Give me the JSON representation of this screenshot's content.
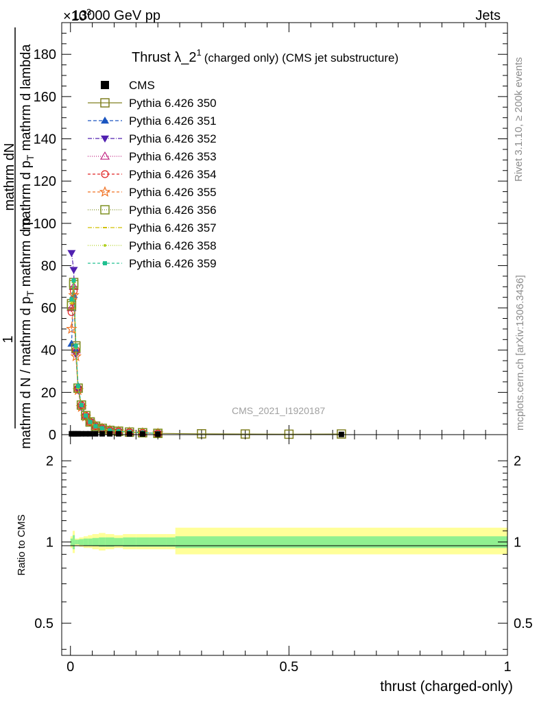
{
  "header": {
    "energy_label": "13000 GeV pp",
    "process_label": "Jets",
    "exponent_label": "×10",
    "exponent_power": "3"
  },
  "side": {
    "rivet_label": "Rivet 3.1.10, ≥ 200k events",
    "mcplots_label": "mcplots.cern.ch [arXiv:1306.3436]"
  },
  "main_plot": {
    "title_main": "Thrust λ_2",
    "title_sup": "1",
    "title_sub": "(charged only) (CMS jet substructure)",
    "analysis_label": "CMS_2021_I1920187",
    "ylabel_numer": "mathrm dN",
    "ylabel_one": "1",
    "ylabel_mid": "mathrm d p",
    "ylabel_mid_sub": "T",
    "ylabel_mid_tail": " mathrm d lambda",
    "ylabel_denom": "mathrm d N / mathrm d p",
    "ylabel_denom_sub": "T",
    "ylabel_denom_tail": " mathrm d p",
    "ylabel_denom_sub2": "T",
    "ylabel_denom_tail2": " mathrm d p",
    "ylabel_denom_sub3": "T",
    "ylabel_denom_tail3": " mathrm d lambda"
  },
  "ratio_plot": {
    "ylabel": "Ratio to CMS"
  },
  "x_axis": {
    "label": "thrust (charged-only)"
  },
  "chart_data": [
    {
      "type": "line",
      "title": "Thrust λ_2^1 (charged only) (CMS jet substructure)",
      "xlabel": "thrust (charged-only)",
      "ylabel": "1/(mathrm d N / mathrm d p_T) mathrm d^2N/(mathrm d p_T mathrm d lambda)",
      "y_scale_note": "×10^3",
      "xlim": [
        -0.02,
        1.0
      ],
      "ylim": [
        0,
        195
      ],
      "x_ticks": [
        "0",
        "0.5",
        "1"
      ],
      "y_ticks": [
        "0",
        "20",
        "40",
        "60",
        "80",
        "100",
        "120",
        "140",
        "160",
        "180"
      ],
      "legend_position": "top-left",
      "data_series": {
        "name": "CMS",
        "x": [
          0.0025,
          0.0075,
          0.0125,
          0.0175,
          0.025,
          0.035,
          0.045,
          0.0575,
          0.0725,
          0.09,
          0.11,
          0.135,
          0.165,
          0.2,
          0.62
        ],
        "y": [
          0.4,
          0.4,
          0.4,
          0.4,
          0.4,
          0.4,
          0.4,
          0.4,
          0.4,
          0.4,
          0.4,
          0.3,
          0.3,
          0.2,
          0.1
        ]
      },
      "series": [
        {
          "name": "Pythia 6.426 350",
          "color": "#7f7f1f",
          "dash": "",
          "marker": "open-square",
          "x": [
            0.0025,
            0.0075,
            0.0125,
            0.0175,
            0.025,
            0.035,
            0.045,
            0.0575,
            0.0725,
            0.09,
            0.11,
            0.135,
            0.165,
            0.2,
            0.3,
            0.4,
            0.5,
            0.62
          ],
          "y": [
            62,
            72,
            42,
            22,
            14,
            9,
            6,
            4,
            3,
            2,
            1.6,
            1.2,
            0.9,
            0.6,
            0.4,
            0.3,
            0.2,
            0.3
          ]
        },
        {
          "name": "Pythia 6.426 351",
          "color": "#1a55c0",
          "dash": "5,3",
          "marker": "filled-triangle-up",
          "x": [
            0.0025,
            0.0075,
            0.0125,
            0.0175,
            0.025,
            0.035,
            0.045,
            0.0575,
            0.0725,
            0.09,
            0.11,
            0.135,
            0.165,
            0.2
          ],
          "y": [
            43,
            66,
            40,
            23,
            14,
            9,
            6,
            4,
            3,
            2,
            1.6,
            1.2,
            0.9,
            0.6
          ]
        },
        {
          "name": "Pythia 6.426 352",
          "color": "#5020b0",
          "dash": "6,2,1,2",
          "marker": "filled-triangle-down",
          "x": [
            0.0025,
            0.0075,
            0.0125,
            0.0175,
            0.025,
            0.035,
            0.045,
            0.0575,
            0.0725,
            0.09,
            0.11,
            0.135,
            0.165,
            0.2
          ],
          "y": [
            86,
            78,
            38,
            21,
            13,
            8.5,
            6,
            4,
            3,
            2,
            1.5,
            1.1,
            0.8,
            0.6
          ]
        },
        {
          "name": "Pythia 6.426 353",
          "color": "#c02080",
          "dash": "1,2",
          "marker": "open-triangle-up",
          "x": [
            0.0025,
            0.0075,
            0.0125,
            0.0175,
            0.025,
            0.035,
            0.045,
            0.0575,
            0.0725,
            0.09,
            0.11,
            0.135,
            0.165,
            0.2
          ],
          "y": [
            60,
            70,
            40,
            22,
            14,
            9,
            6,
            4,
            3,
            2,
            1.6,
            1.2,
            0.9,
            0.6
          ]
        },
        {
          "name": "Pythia 6.426 354",
          "color": "#e02020",
          "dash": "4,3",
          "marker": "open-circle",
          "x": [
            0.0025,
            0.0075,
            0.0125,
            0.0175,
            0.025,
            0.035,
            0.045,
            0.0575,
            0.0725,
            0.09,
            0.11,
            0.135,
            0.165,
            0.2
          ],
          "y": [
            58,
            68,
            40,
            22,
            14,
            9,
            6,
            4,
            3,
            2,
            1.6,
            1.2,
            0.9,
            0.6
          ]
        },
        {
          "name": "Pythia 6.426 355",
          "color": "#f07020",
          "dash": "4,3",
          "marker": "open-star",
          "x": [
            0.0025,
            0.0075,
            0.0125,
            0.0175,
            0.025,
            0.035,
            0.045,
            0.0575,
            0.0725,
            0.09,
            0.11,
            0.135,
            0.165,
            0.2
          ],
          "y": [
            50,
            66,
            37,
            21,
            13,
            8.5,
            6,
            4,
            3,
            2,
            1.5,
            1.1,
            0.8,
            0.6
          ]
        },
        {
          "name": "Pythia 6.426 356",
          "color": "#7f9020",
          "dash": "1,2",
          "marker": "open-square",
          "x": [
            0.0025,
            0.0075,
            0.0125,
            0.0175,
            0.025,
            0.035,
            0.045,
            0.0575,
            0.0725,
            0.09,
            0.11,
            0.135,
            0.165,
            0.2
          ],
          "y": [
            61,
            71,
            41,
            22,
            14,
            9,
            6,
            4,
            3,
            2,
            1.6,
            1.2,
            0.9,
            0.6
          ]
        },
        {
          "name": "Pythia 6.426 357",
          "color": "#d0c000",
          "dash": "6,2,1,2",
          "marker": "small-dash",
          "x": [
            0.0025,
            0.0075,
            0.0125,
            0.0175,
            0.025,
            0.035,
            0.045,
            0.0575,
            0.0725,
            0.09,
            0.11,
            0.135,
            0.165,
            0.2
          ],
          "y": [
            62,
            72,
            41,
            22,
            14,
            9,
            6,
            4,
            3,
            2,
            1.6,
            1.2,
            0.9,
            0.6
          ]
        },
        {
          "name": "Pythia 6.426 358",
          "color": "#b0d020",
          "dash": "1,2",
          "marker": "small-dot",
          "x": [
            0.0025,
            0.0075,
            0.0125,
            0.0175,
            0.025,
            0.035,
            0.045,
            0.0575,
            0.0725,
            0.09,
            0.11,
            0.135,
            0.165,
            0.2
          ],
          "y": [
            63,
            72,
            41,
            22,
            14,
            9,
            6,
            4,
            3,
            2,
            1.6,
            1.2,
            0.9,
            0.6
          ]
        },
        {
          "name": "Pythia 6.426 359",
          "color": "#20c090",
          "dash": "4,3",
          "marker": "filled-square-small",
          "x": [
            0.0025,
            0.0075,
            0.0125,
            0.0175,
            0.025,
            0.035,
            0.045,
            0.0575,
            0.0725,
            0.09,
            0.11,
            0.135,
            0.165,
            0.2
          ],
          "y": [
            64,
            73,
            42,
            23,
            14,
            9,
            6,
            4,
            3,
            2,
            1.6,
            1.2,
            0.9,
            0.6
          ]
        }
      ]
    },
    {
      "type": "area",
      "title": "Ratio to CMS",
      "ylabel": "Ratio to CMS",
      "xlim": [
        -0.02,
        1.0
      ],
      "ylim": [
        0.38,
        2.5
      ],
      "y_scale": "log",
      "y_ticks": [
        "0.5",
        "1",
        "2"
      ],
      "reference_line": 1,
      "bins": [
        0.0,
        0.005,
        0.01,
        0.015,
        0.02,
        0.03,
        0.04,
        0.05,
        0.065,
        0.08,
        0.1,
        0.12,
        0.15,
        0.18,
        0.22,
        0.24,
        1.0
      ],
      "band_inner": [
        [
          0.97,
          1.03
        ],
        [
          0.94,
          1.06
        ],
        [
          0.98,
          1.02
        ],
        [
          0.98,
          1.02
        ],
        [
          0.975,
          1.025
        ],
        [
          0.97,
          1.03
        ],
        [
          0.97,
          1.03
        ],
        [
          0.965,
          1.035
        ],
        [
          0.96,
          1.04
        ],
        [
          0.96,
          1.04
        ],
        [
          0.965,
          1.035
        ],
        [
          0.96,
          1.04
        ],
        [
          0.96,
          1.04
        ],
        [
          0.96,
          1.04
        ],
        [
          0.96,
          1.04
        ],
        [
          0.95,
          1.05
        ]
      ],
      "band_outer": [
        [
          0.95,
          1.05
        ],
        [
          0.91,
          1.1
        ],
        [
          0.97,
          1.03
        ],
        [
          0.97,
          1.03
        ],
        [
          0.96,
          1.04
        ],
        [
          0.95,
          1.05
        ],
        [
          0.95,
          1.06
        ],
        [
          0.94,
          1.07
        ],
        [
          0.93,
          1.08
        ],
        [
          0.94,
          1.07
        ],
        [
          0.95,
          1.06
        ],
        [
          0.94,
          1.07
        ],
        [
          0.94,
          1.07
        ],
        [
          0.94,
          1.07
        ],
        [
          0.94,
          1.07
        ],
        [
          0.9,
          1.13
        ]
      ]
    }
  ],
  "colors": {
    "band_inner": "#90f090",
    "band_outer": "#ffff99",
    "data_marker": "#000000",
    "side_text": "#8c8c8c",
    "analysis_text": "#a0a0a0"
  }
}
